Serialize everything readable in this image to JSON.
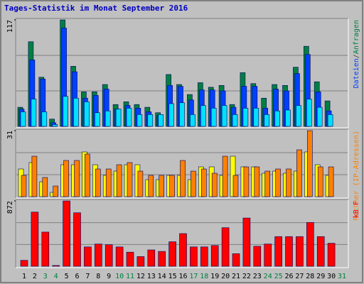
{
  "chart_data": [
    {
      "type": "bar",
      "title": "Tages-Statistik im Monat September 2016",
      "ylim": [
        0,
        117
      ],
      "yticks": [
        117
      ],
      "side_label": [
        {
          "text": "Dateien",
          "color": "#0040ff"
        },
        {
          "text": "/",
          "color": "#404040"
        },
        {
          "text": "Anfragen",
          "color": "#008040"
        }
      ],
      "series": [
        {
          "color": "#008040",
          "values": [
            21,
            93,
            54,
            8,
            117,
            66,
            38,
            38,
            46,
            24,
            27,
            24,
            21,
            15,
            57,
            46,
            35,
            48,
            43,
            45,
            24,
            59,
            47,
            31,
            46,
            45,
            65,
            88,
            49,
            28,
            null
          ]
        },
        {
          "color": "#0040ff",
          "values": [
            19,
            73,
            52,
            4,
            108,
            60,
            31,
            34,
            41,
            19,
            23,
            20,
            16,
            12,
            45,
            44,
            29,
            40,
            40,
            39,
            21,
            44,
            44,
            20,
            41,
            39,
            58,
            79,
            38,
            17,
            null
          ]
        },
        {
          "color": "#00e0ff",
          "values": [
            16,
            30,
            16,
            2,
            33,
            31,
            27,
            15,
            17,
            19,
            20,
            13,
            13,
            13,
            25,
            26,
            13,
            23,
            20,
            23,
            13,
            20,
            20,
            13,
            17,
            18,
            23,
            30,
            21,
            13,
            null
          ]
        }
      ]
    },
    {
      "type": "bar",
      "ylim": [
        0,
        31
      ],
      "yticks": [
        31
      ],
      "side_label": [
        {
          "text": "Rechner (IP-Adressen)",
          "color": "#ff8000"
        }
      ],
      "series": [
        {
          "color": "#ffff00",
          "values": [
            13,
            16,
            7,
            2,
            15,
            15,
            21,
            15,
            10,
            12,
            15,
            15,
            8,
            8,
            10,
            10,
            8,
            14,
            14,
            10,
            19,
            14,
            14,
            11,
            12,
            11,
            12,
            21,
            15,
            10,
            null
          ]
        },
        {
          "color": "#ff8000",
          "values": [
            10,
            19,
            9,
            5,
            17,
            17,
            20,
            13,
            13,
            15,
            16,
            12,
            10,
            10,
            10,
            17,
            12,
            13,
            11,
            19,
            10,
            14,
            14,
            12,
            13,
            13,
            22,
            31,
            14,
            14,
            null
          ]
        }
      ]
    },
    {
      "type": "bar",
      "ylim": [
        0,
        872
      ],
      "yticks": [
        872
      ],
      "side_label": [
        {
          "text": "kB F",
          "color": "#ff0000"
        }
      ],
      "categories": [
        "1",
        "2",
        "3",
        "4",
        "5",
        "6",
        "7",
        "8",
        "9",
        "10",
        "11",
        "12",
        "13",
        "14",
        "15",
        "16",
        "17",
        "18",
        "19",
        "20",
        "21",
        "22",
        "23",
        "24",
        "25",
        "26",
        "27",
        "28",
        "29",
        "30",
        "31"
      ],
      "category_colors": [
        "#000000",
        "#000000",
        "#008040",
        "#008040",
        "#000000",
        "#000000",
        "#000000",
        "#000000",
        "#000000",
        "#008040",
        "#008040",
        "#000000",
        "#000000",
        "#000000",
        "#000000",
        "#000000",
        "#008040",
        "#008040",
        "#000000",
        "#000000",
        "#000000",
        "#000000",
        "#000000",
        "#008040",
        "#008040",
        "#000000",
        "#000000",
        "#000000",
        "#000000",
        "#000000",
        "#008040"
      ],
      "series": [
        {
          "color": "#ff0000",
          "values": [
            79,
            723,
            456,
            10,
            872,
            714,
            258,
            297,
            287,
            258,
            188,
            129,
            218,
            198,
            327,
            436,
            258,
            258,
            277,
            515,
            168,
            644,
            267,
            297,
            396,
            396,
            396,
            585,
            396,
            307,
            null
          ]
        }
      ]
    }
  ]
}
